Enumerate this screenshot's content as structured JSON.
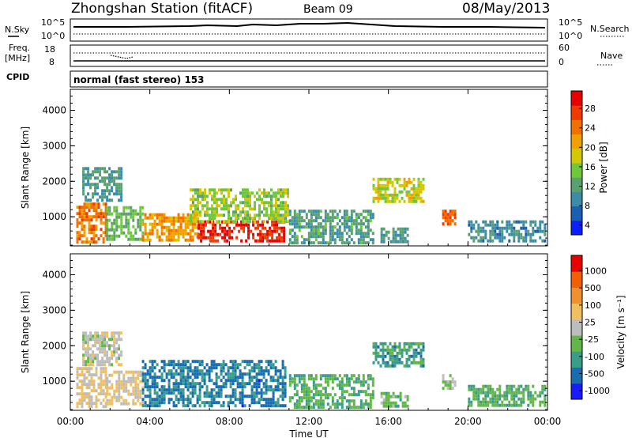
{
  "header": {
    "station": "Zhongshan Station (fitACF)",
    "beam": "Beam 09",
    "date": "08/May/2013"
  },
  "summary": {
    "nsky_label": "N.Sky",
    "nsky_ticks": [
      "10^5",
      "10^0"
    ],
    "nsearch_label": "N.Search",
    "nsearch_ticks": [
      "10^5",
      "10^0"
    ],
    "freq_label": "Freq.",
    "freq_unit": "[MHz]",
    "freq_ticks": [
      "18",
      "8"
    ],
    "nave_label": "Nave",
    "nave_ticks": [
      "60",
      "0"
    ],
    "cpid_label": "CPID",
    "cpid_text": "normal (fast stereo) 153"
  },
  "chart_data": [
    {
      "type": "heatmap",
      "name": "power",
      "ylabel": "Slant Range [km]",
      "yticks": [
        "4000",
        "3000",
        "2000",
        "1000"
      ],
      "ylim": [
        180,
        4590
      ],
      "xlim": [
        0,
        24
      ],
      "xticks": [
        0,
        4,
        8,
        12,
        16,
        20,
        24
      ],
      "colorbar": {
        "label": "Power [dB]",
        "ticks": [
          "28",
          "24",
          "20",
          "16",
          "12",
          "8",
          "4"
        ],
        "range": [
          0,
          30
        ],
        "colors": [
          "#0a1eff",
          "#1a5fb4",
          "#3a8ca8",
          "#5aa070",
          "#6ec93a",
          "#d6c800",
          "#f0a000",
          "#f07000",
          "#f03a00",
          "#e80000"
        ]
      },
      "echo_regions": [
        {
          "t": [
            0.3,
            1.8
          ],
          "r": [
            300,
            1400
          ],
          "v": 22
        },
        {
          "t": [
            1.8,
            3.6
          ],
          "r": [
            350,
            1300
          ],
          "v": 12
        },
        {
          "t": [
            0.6,
            2.6
          ],
          "r": [
            1500,
            2400
          ],
          "v": 9
        },
        {
          "t": [
            3.6,
            6.4
          ],
          "r": [
            300,
            1100
          ],
          "v": 20
        },
        {
          "t": [
            6.4,
            10.8
          ],
          "r": [
            300,
            900
          ],
          "v": 27
        },
        {
          "t": [
            6.0,
            11.0
          ],
          "r": [
            900,
            1800
          ],
          "v": 14
        },
        {
          "t": [
            11.0,
            15.2
          ],
          "r": [
            300,
            1200
          ],
          "v": 10
        },
        {
          "t": [
            15.2,
            17.8
          ],
          "r": [
            1400,
            2100
          ],
          "v": 16
        },
        {
          "t": [
            15.6,
            17.0
          ],
          "r": [
            300,
            700
          ],
          "v": 9
        },
        {
          "t": [
            18.7,
            19.3
          ],
          "r": [
            800,
            1200
          ],
          "v": 24
        },
        {
          "t": [
            20.0,
            23.9
          ],
          "r": [
            300,
            900
          ],
          "v": 8
        }
      ]
    },
    {
      "type": "heatmap",
      "name": "velocity",
      "ylabel": "Slant Range [km]",
      "yticks": [
        "4000",
        "3000",
        "2000",
        "1000"
      ],
      "ylim": [
        180,
        4590
      ],
      "xlim": [
        0,
        24
      ],
      "xticks": [
        0,
        4,
        8,
        12,
        16,
        20,
        24
      ],
      "colorbar": {
        "label": "Velocity [m s⁻¹]",
        "ticks": [
          "1000",
          "500",
          "100",
          "25",
          "-25",
          "-100",
          "-500",
          "-1000"
        ],
        "range": [
          -1000,
          1000
        ],
        "colors": [
          "#1a1aff",
          "#1a6cb0",
          "#3a9c8a",
          "#62b64a",
          "#bdbdbd",
          "#f0c060",
          "#f09030",
          "#f06000",
          "#e80000"
        ]
      },
      "echo_regions": [
        {
          "t": [
            0.3,
            1.8
          ],
          "r": [
            300,
            1400
          ],
          "v": 150
        },
        {
          "t": [
            0.6,
            2.6
          ],
          "r": [
            1500,
            2400
          ],
          "v": 0
        },
        {
          "t": [
            1.8,
            3.6
          ],
          "r": [
            350,
            1300
          ],
          "v": 120
        },
        {
          "t": [
            3.6,
            10.8
          ],
          "r": [
            300,
            1600
          ],
          "v": -600
        },
        {
          "t": [
            11.0,
            15.2
          ],
          "r": [
            300,
            1200
          ],
          "v": -300
        },
        {
          "t": [
            15.2,
            17.8
          ],
          "r": [
            1400,
            2100
          ],
          "v": -400
        },
        {
          "t": [
            15.6,
            17.0
          ],
          "r": [
            300,
            700
          ],
          "v": -200
        },
        {
          "t": [
            18.7,
            19.3
          ],
          "r": [
            800,
            1200
          ],
          "v": -150
        },
        {
          "t": [
            20.0,
            23.9
          ],
          "r": [
            300,
            900
          ],
          "v": -300
        }
      ]
    }
  ],
  "xaxis": {
    "ticks": [
      "00:00",
      "04:00",
      "08:00",
      "12:00",
      "16:00",
      "20:00",
      "00:00"
    ],
    "label": "Time UT"
  }
}
